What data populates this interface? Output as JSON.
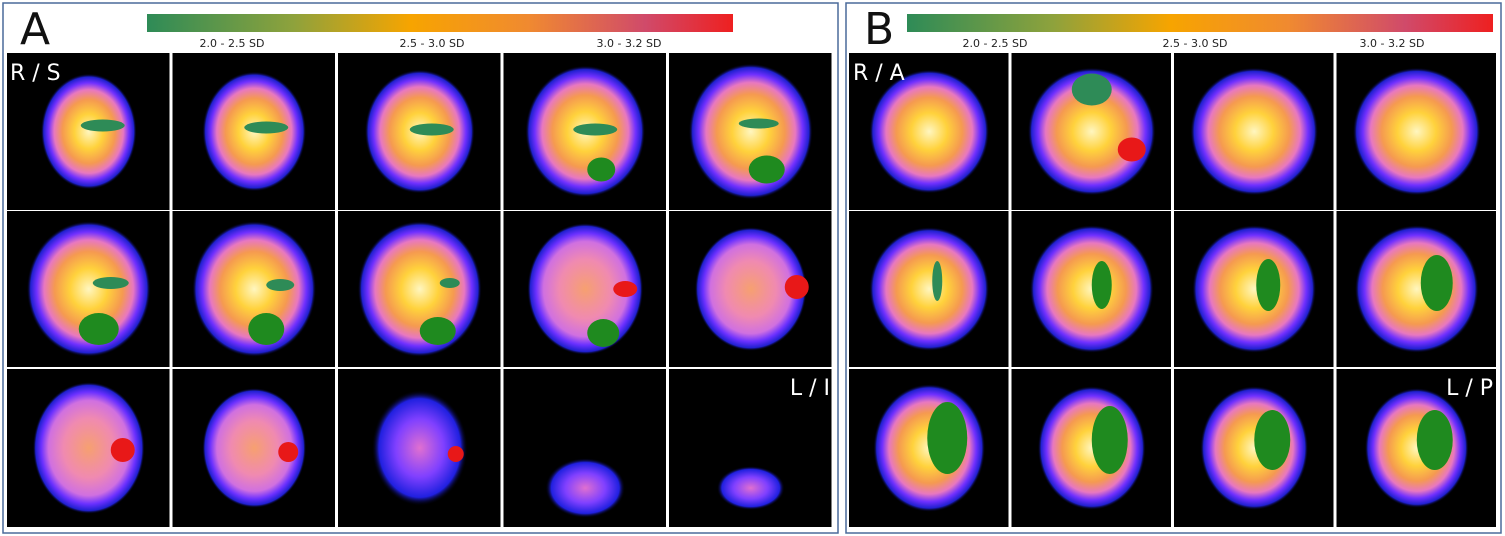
{
  "panels": [
    {
      "label": "A",
      "legend": [
        "2.0 - 2.5 SD",
        "2.5 - 3.0 SD",
        "3.0 - 3.2 SD"
      ],
      "corner_labels": [
        "R / S",
        "L / I"
      ]
    },
    {
      "label": "B",
      "legend": [
        "2.0 - 2.5 SD",
        "2.5 - 3.0 SD",
        "3.0 - 3.2 SD"
      ],
      "corner_labels": [
        "R / A",
        "L / P"
      ]
    }
  ]
}
